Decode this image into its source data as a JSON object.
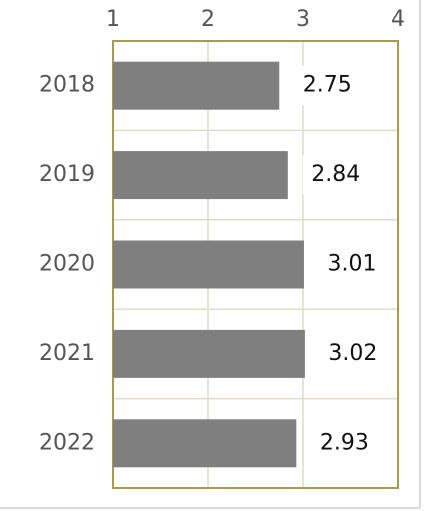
{
  "chart_data": {
    "type": "hbar",
    "categories": [
      "2018",
      "2019",
      "2020",
      "2021",
      "2022"
    ],
    "values": [
      2.75,
      2.84,
      3.01,
      3.02,
      2.93
    ],
    "color": "#7f7f7f",
    "xlim": [
      1,
      4
    ],
    "xticks": [
      1,
      2,
      3,
      4
    ],
    "grid": true
  }
}
